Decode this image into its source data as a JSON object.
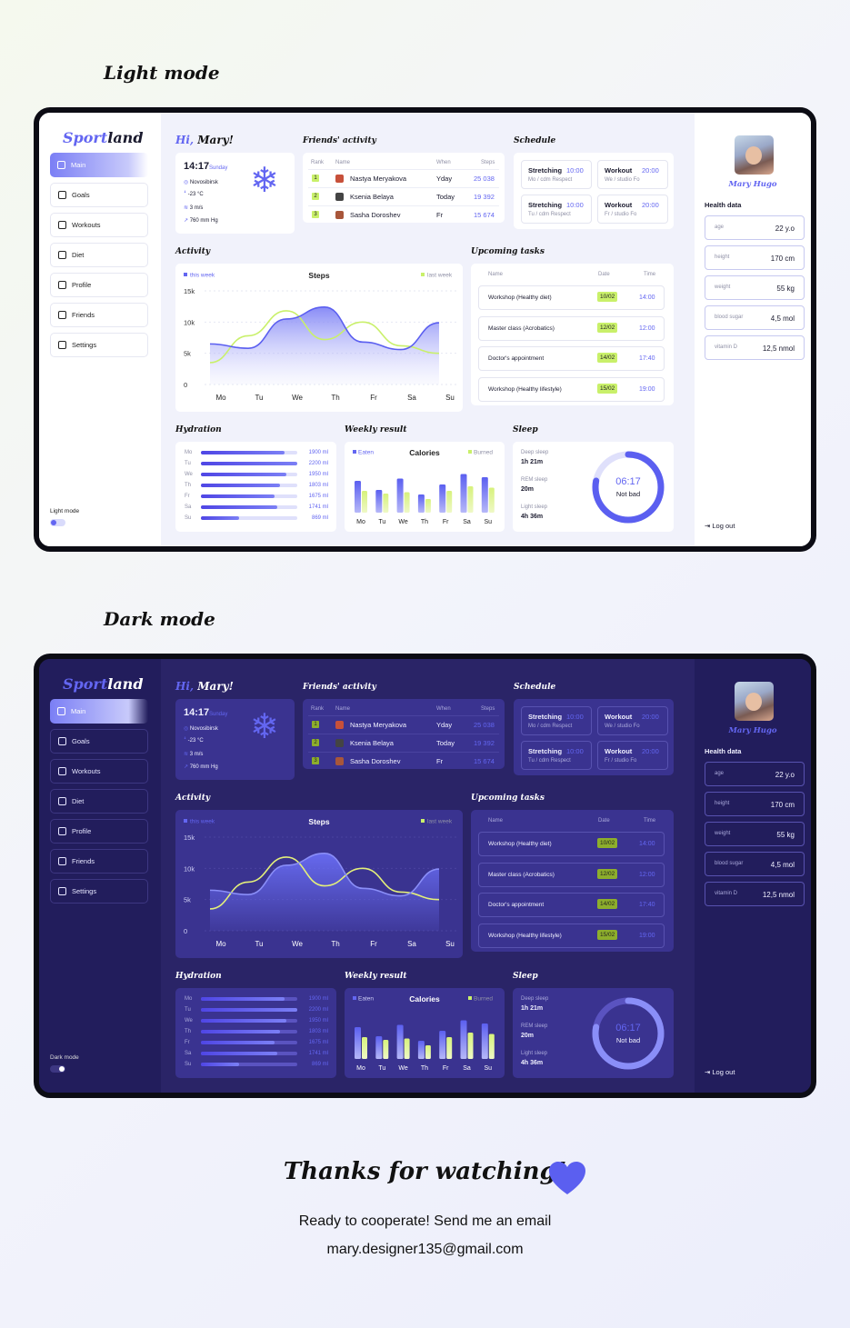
{
  "sections": {
    "light_title": "Light mode",
    "dark_title": "Dark mode"
  },
  "app": {
    "logo_a": "Sport",
    "logo_b": "land",
    "nav": [
      {
        "label": "Main",
        "icon": "home-icon"
      },
      {
        "label": "Goals",
        "icon": "target-icon"
      },
      {
        "label": "Workouts",
        "icon": "dumbbell-icon"
      },
      {
        "label": "Diet",
        "icon": "notebook-icon"
      },
      {
        "label": "Profile",
        "icon": "smile-icon"
      },
      {
        "label": "Friends",
        "icon": "users-icon"
      },
      {
        "label": "Settings",
        "icon": "gear-icon"
      }
    ],
    "light_mode_label": "Light mode",
    "dark_mode_label": "Dark mode",
    "greeting_a": "Hi,",
    "greeting_b": "Mary!",
    "weather": {
      "time": "14:17",
      "day": "Sunday",
      "city": "Novosibirsk",
      "temp": "-23 °C",
      "wind": "3 m/s",
      "pressure": "760 mm Hg"
    },
    "friends": {
      "title": "Friends' activity",
      "headers": [
        "Rank",
        "Name",
        "When",
        "Steps"
      ],
      "rows": [
        {
          "rank": "1",
          "name": "Nastya Meryakova",
          "when": "Yday",
          "steps": "25 038"
        },
        {
          "rank": "2",
          "name": "Ksenia Belaya",
          "when": "Today",
          "steps": "19 392"
        },
        {
          "rank": "3",
          "name": "Sasha Doroshev",
          "when": "Fr",
          "steps": "15 674"
        }
      ]
    },
    "schedule": {
      "title": "Schedule",
      "items": [
        {
          "name": "Stretching",
          "time": "10:00",
          "sub": "Mo / cdm Respect"
        },
        {
          "name": "Workout",
          "time": "20:00",
          "sub": "We / studio Fo"
        },
        {
          "name": "Stretching",
          "time": "10:00",
          "sub": "Tu / cdm Respect"
        },
        {
          "name": "Workout",
          "time": "20:00",
          "sub": "Fr / studio Fo"
        }
      ]
    },
    "activity_title": "Activity",
    "tasks": {
      "title": "Upcoming tasks",
      "headers": [
        "Name",
        "Date",
        "Time"
      ],
      "rows": [
        {
          "name": "Workshop (Healthy diet)",
          "date": "10/02",
          "time": "14:00"
        },
        {
          "name": "Master class (Acrobatics)",
          "date": "12/02",
          "time": "12:00"
        },
        {
          "name": "Doctor's appointment",
          "date": "14/02",
          "time": "17:40"
        },
        {
          "name": "Workshop (Healthy lifestyle)",
          "date": "15/02",
          "time": "19:00"
        }
      ]
    },
    "hydration_title": "Hydration",
    "weekly_title": "Weekly result",
    "sleep": {
      "title": "Sleep",
      "deep_label": "Deep sleep",
      "deep_value": "1h 21m",
      "rem_label": "REM sleep",
      "rem_value": "20m",
      "light_label": "Light sleep",
      "light_value": "4h 36m",
      "total": "06:17",
      "status": "Not bad",
      "progress": 0.78
    },
    "profile": {
      "name": "Mary Hugo",
      "health_title": "Health data",
      "items": [
        {
          "label": "age",
          "value": "22 y.o"
        },
        {
          "label": "height",
          "value": "170 cm"
        },
        {
          "label": "weight",
          "value": "55 kg"
        },
        {
          "label": "blood sugar",
          "value": "4,5 mol"
        },
        {
          "label": "vitamin D",
          "value": "12,5 nmol"
        }
      ],
      "logout": "Log out"
    },
    "colors": {
      "accent": "#6366f1",
      "lime": "#c9f06a"
    }
  },
  "chart_data": [
    {
      "type": "line",
      "title": "Steps",
      "categories": [
        "Mo",
        "Tu",
        "We",
        "Th",
        "Fr",
        "Sa",
        "Su"
      ],
      "yticks": [
        "15k",
        "10k",
        "5k",
        "0"
      ],
      "ylim": [
        0,
        15000
      ],
      "series": [
        {
          "name": "this week",
          "values": [
            6500,
            5800,
            10500,
            12400,
            6800,
            5600,
            9900
          ]
        },
        {
          "name": "last week",
          "values": [
            3500,
            7800,
            11800,
            7200,
            10000,
            6200,
            5000
          ]
        }
      ]
    },
    {
      "type": "bar",
      "title": "Hydration",
      "categories": [
        "Mo",
        "Tu",
        "We",
        "Th",
        "Fr",
        "Sa",
        "Su"
      ],
      "labels": [
        "1900 ml",
        "2200 ml",
        "1950 ml",
        "1803 ml",
        "1675 ml",
        "1741 ml",
        "869 ml"
      ],
      "values": [
        1900,
        2200,
        1950,
        1803,
        1675,
        1741,
        869
      ],
      "xlim": [
        0,
        2200
      ]
    },
    {
      "type": "bar",
      "title": "Calories",
      "categories": [
        "Mo",
        "Tu",
        "We",
        "Th",
        "Fr",
        "Sa",
        "Su"
      ],
      "series": [
        {
          "name": "Eaten",
          "values": [
            70,
            50,
            75,
            40,
            62,
            85,
            78
          ]
        },
        {
          "name": "Burned",
          "values": [
            48,
            42,
            45,
            30,
            48,
            58,
            55
          ]
        }
      ],
      "ylim": [
        0,
        100
      ]
    }
  ],
  "footer": {
    "title": "Thanks for watching!",
    "line1": "Ready to cooperate! Send me an email",
    "email": "mary.designer135@gmail.com"
  }
}
